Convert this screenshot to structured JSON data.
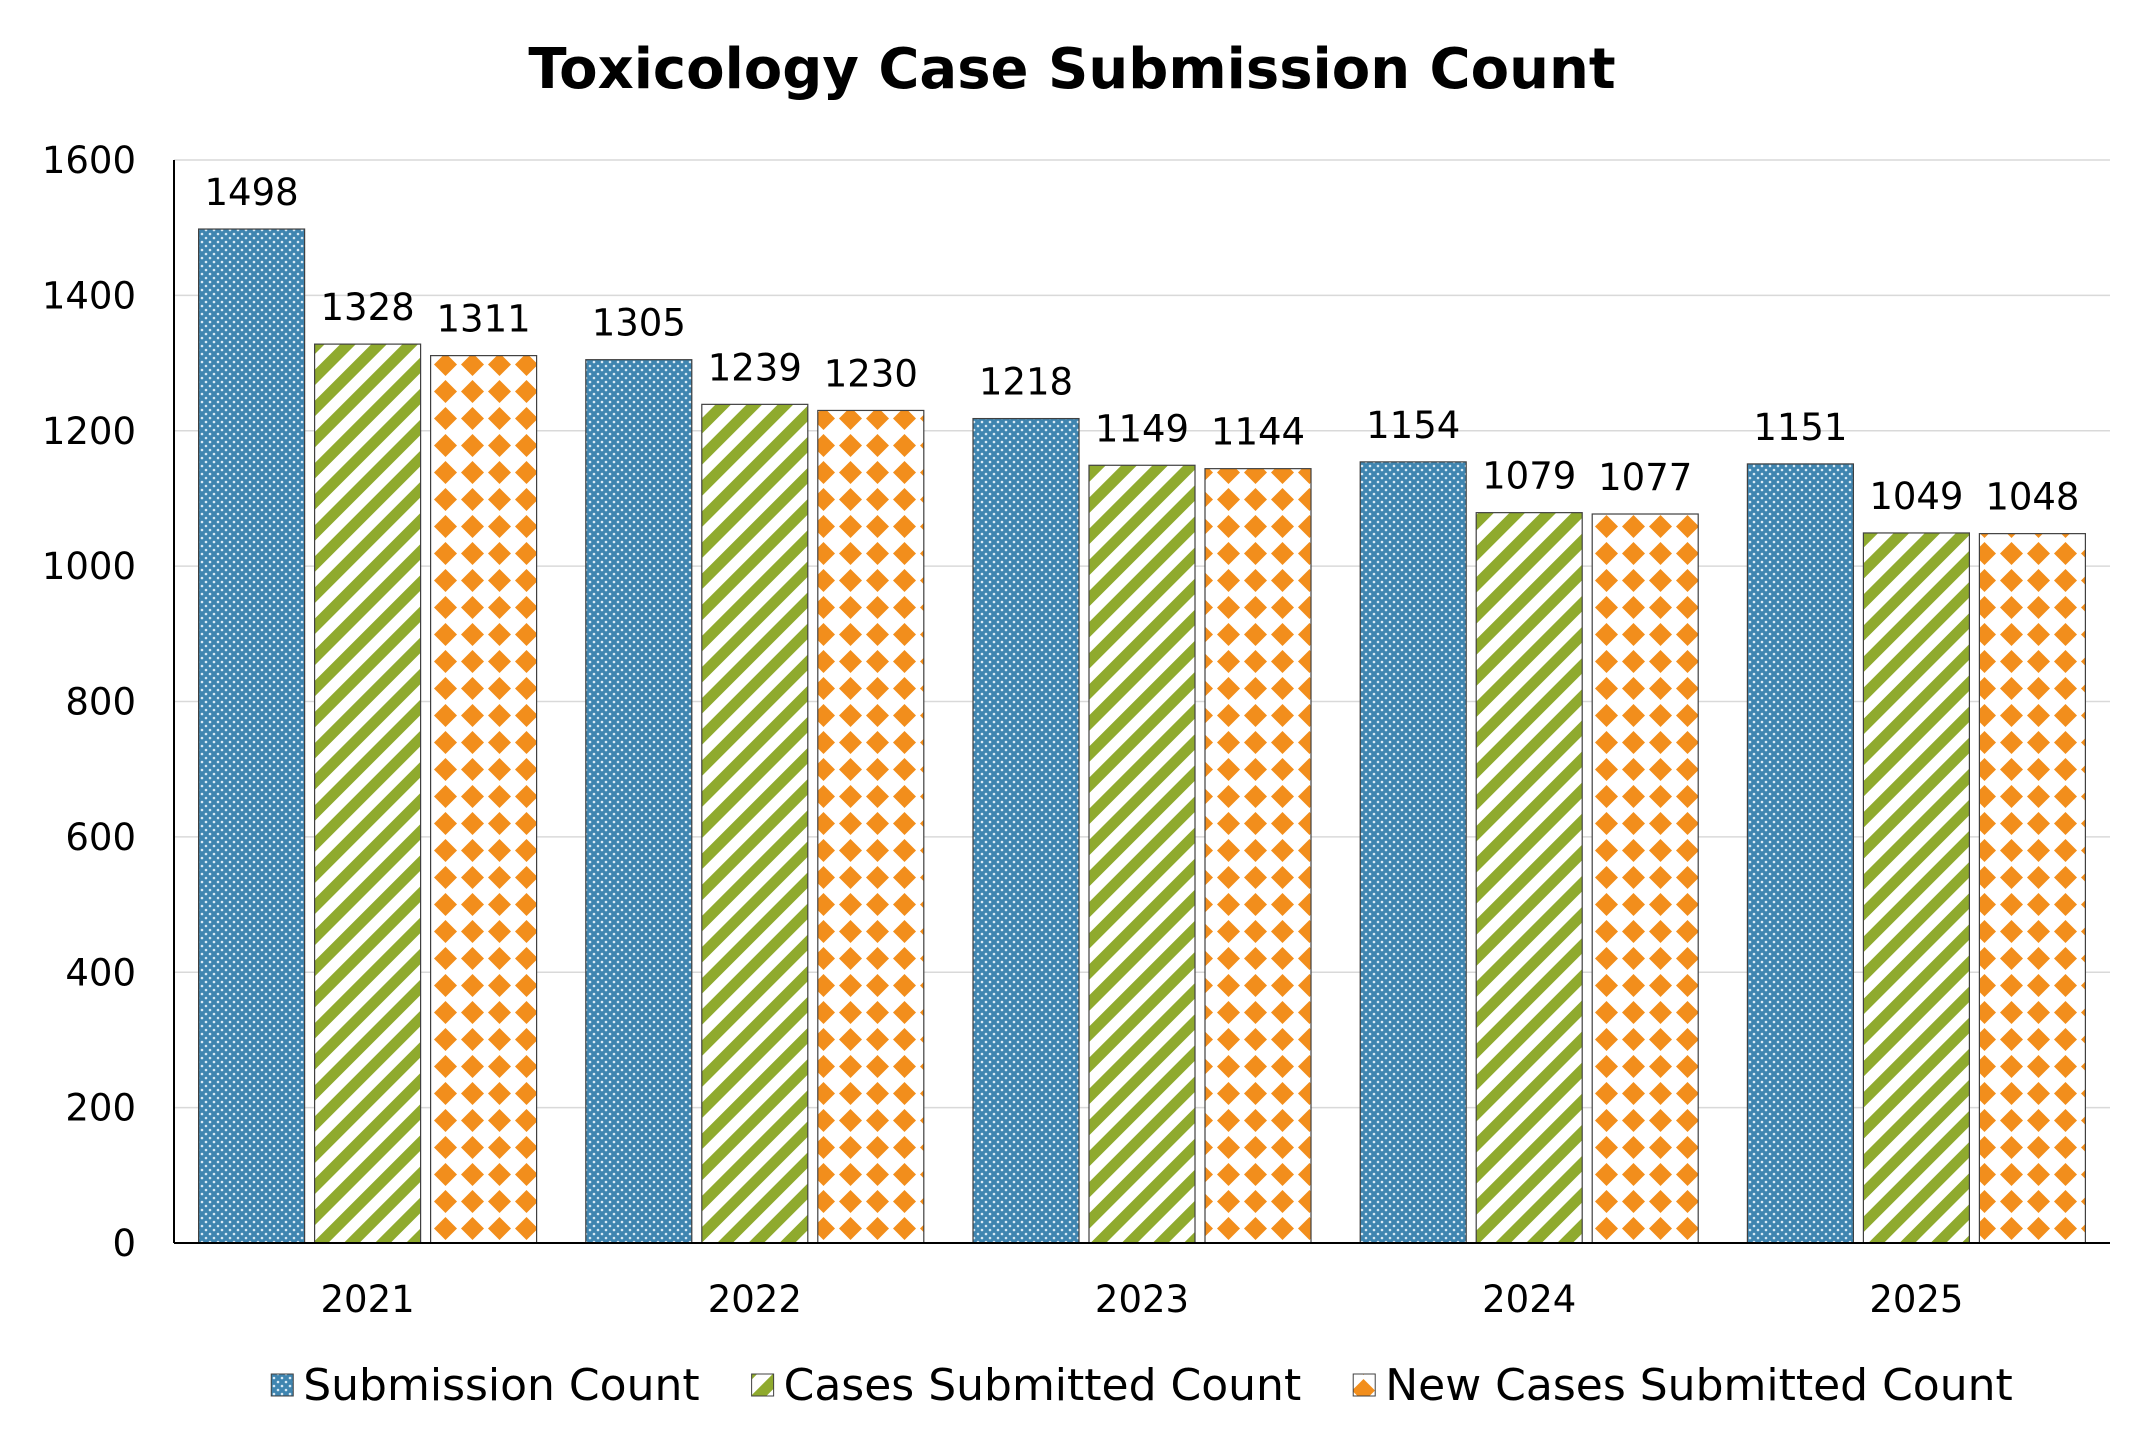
{
  "chart_data": {
    "type": "bar",
    "title": "Toxicology Case Submission Count",
    "xlabel": "",
    "ylabel": "",
    "categories": [
      "2021",
      "2022",
      "2023",
      "2024",
      "2025"
    ],
    "series": [
      {
        "name": "Submission Count",
        "values": [
          1498,
          1305,
          1218,
          1154,
          1151
        ],
        "color": "#3f85b0",
        "pattern": "dots"
      },
      {
        "name": "Cases Submitted Count",
        "values": [
          1328,
          1239,
          1149,
          1079,
          1049
        ],
        "color": "#8faa2e",
        "pattern": "diagonal-stripes"
      },
      {
        "name": "New Cases Submitted Count",
        "values": [
          1311,
          1230,
          1144,
          1077,
          1048
        ],
        "color": "#f28e1c",
        "pattern": "diamonds"
      }
    ],
    "ylim": [
      0,
      1600
    ],
    "yticks": [
      0,
      200,
      400,
      600,
      800,
      1000,
      1200,
      1400,
      1600
    ],
    "grid": true,
    "legend_position": "bottom",
    "data_labels": true
  }
}
